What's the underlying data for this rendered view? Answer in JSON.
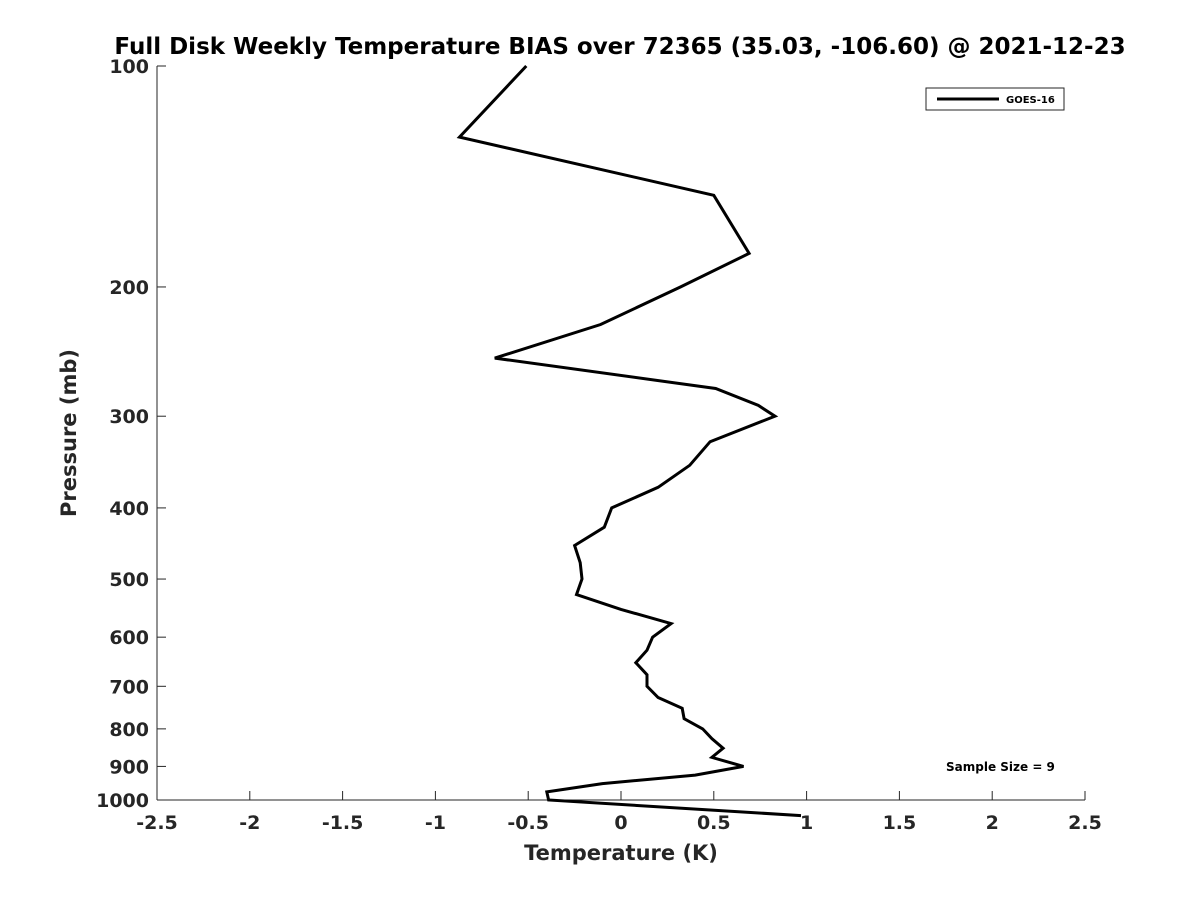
{
  "chart_data": {
    "type": "line",
    "title": "Full Disk Weekly Temperature BIAS over 72365 (35.03, -106.60) @ 2021-12-23",
    "xlabel": "Temperature (K)",
    "ylabel": "Pressure (mb)",
    "xlim": [
      -2.5,
      2.5
    ],
    "ylim": [
      100,
      1000
    ],
    "y_scale": "log",
    "y_reversed": true,
    "xticks": [
      "-2.5",
      "-2",
      "-1.5",
      "-1",
      "-0.5",
      "0",
      "0.5",
      "1",
      "1.5",
      "2",
      "2.5"
    ],
    "yticks": [
      "100",
      "200",
      "300",
      "400",
      "500",
      "600",
      "700",
      "800",
      "900",
      "1000"
    ],
    "grid": false,
    "legend_position": "top-right",
    "series": [
      {
        "name": "GOES-16",
        "color": "#000000",
        "x": [
          -0.51,
          -0.87,
          0.5,
          0.69,
          0.32,
          -0.11,
          -0.68,
          0.51,
          0.74,
          0.83,
          0.48,
          0.37,
          0.2,
          -0.05,
          -0.09,
          -0.25,
          -0.22,
          -0.21,
          -0.24,
          0.0,
          0.27,
          0.17,
          0.14,
          0.08,
          0.14,
          0.14,
          0.2,
          0.33,
          0.34,
          0.44,
          0.49,
          0.55,
          0.49,
          0.66,
          0.4,
          -0.1,
          -0.4,
          -0.39,
          0.97
        ],
        "y": [
          100,
          125,
          150,
          180,
          200,
          225,
          250,
          275,
          290,
          300,
          325,
          350,
          375,
          400,
          425,
          450,
          475,
          500,
          525,
          550,
          575,
          600,
          625,
          650,
          675,
          700,
          725,
          750,
          775,
          800,
          825,
          850,
          875,
          900,
          925,
          950,
          975,
          1000,
          1050
        ]
      }
    ],
    "annotations": [
      "Sample Size = 9"
    ]
  }
}
